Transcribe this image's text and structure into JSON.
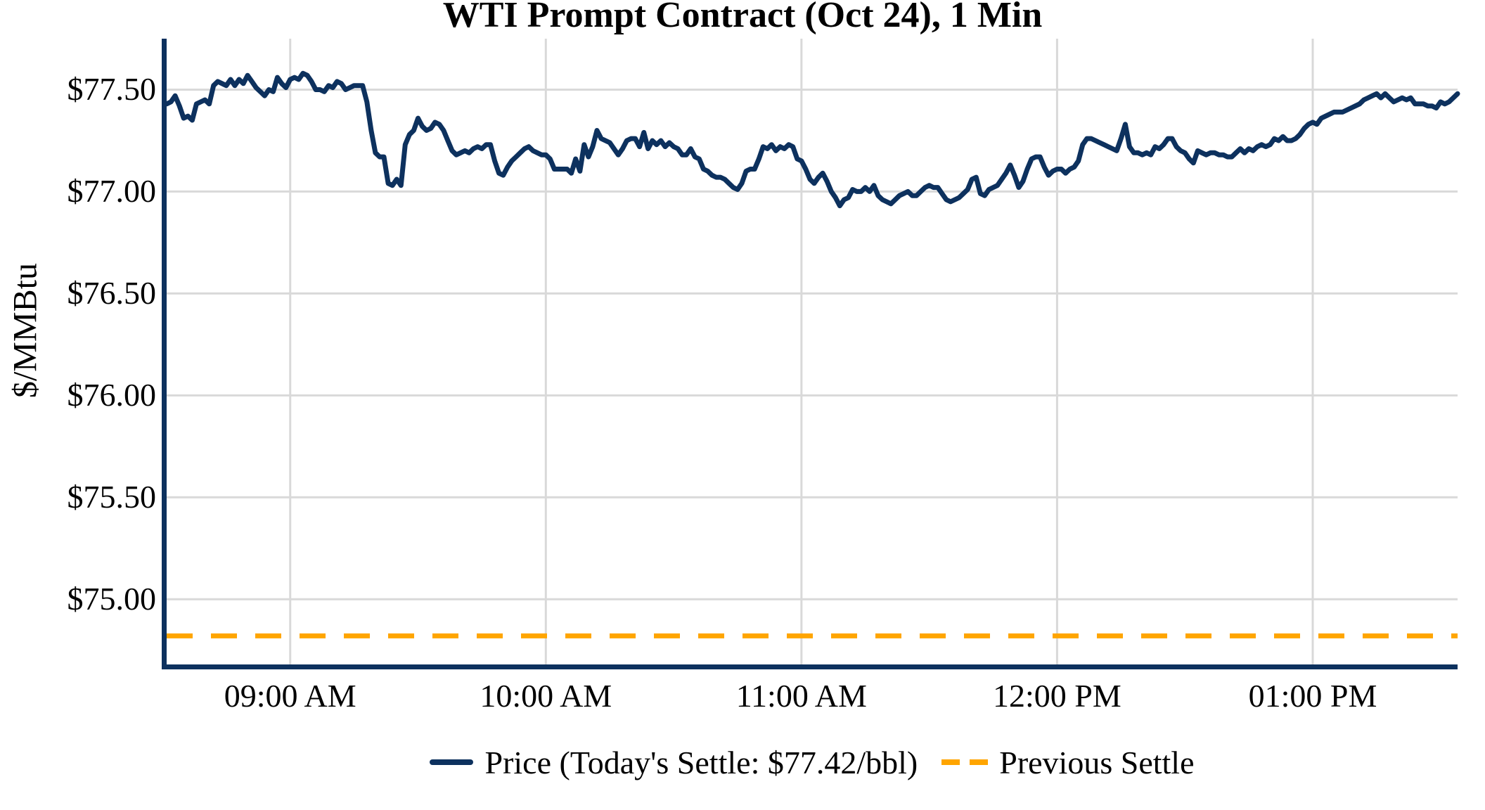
{
  "title": "WTI Prompt Contract (Oct 24), 1 Min",
  "y_axis_label": "$/MMBtu",
  "legend": {
    "price_label": "Price (Today's Settle: $77.42/bbl)",
    "previous_settle_label": "Previous Settle"
  },
  "colors": {
    "price_line": "#0d315e",
    "previous_settle_line": "#ffa500",
    "grid": "#d9d9d9",
    "spine": "#0d315e",
    "text": "#000000",
    "background": "#ffffff"
  },
  "chart_data": {
    "type": "line",
    "title": "WTI Prompt Contract (Oct 24), 1 Min",
    "xlabel": "",
    "ylabel": "$/MMBtu",
    "ylim": [
      74.68,
      77.75
    ],
    "grid": true,
    "legend_position": "bottom",
    "today_settle_usd_per_bbl": 77.42,
    "previous_settle": 74.82,
    "x_start_time": "08:31 AM",
    "x_end_time": "01:34 PM",
    "x_minutes_total": 303,
    "x_ticks": [
      {
        "label": "09:00 AM",
        "minute": 29
      },
      {
        "label": "10:00 AM",
        "minute": 89
      },
      {
        "label": "11:00 AM",
        "minute": 149
      },
      {
        "label": "12:00 PM",
        "minute": 209
      },
      {
        "label": "01:00 PM",
        "minute": 269
      }
    ],
    "y_ticks": [
      {
        "label": "$75.00",
        "value": 75.0
      },
      {
        "label": "$75.50",
        "value": 75.5
      },
      {
        "label": "$76.00",
        "value": 76.0
      },
      {
        "label": "$76.50",
        "value": 76.5
      },
      {
        "label": "$77.00",
        "value": 77.0
      },
      {
        "label": "$77.50",
        "value": 77.5
      }
    ],
    "series": [
      {
        "name": "Price (Today's Settle: $77.42/bbl)",
        "style": "solid",
        "interval": "1 min",
        "values": [
          77.43,
          77.44,
          77.47,
          77.42,
          77.36,
          77.37,
          77.35,
          77.43,
          77.44,
          77.45,
          77.43,
          77.52,
          77.54,
          77.53,
          77.52,
          77.55,
          77.52,
          77.55,
          77.53,
          77.57,
          77.54,
          77.51,
          77.49,
          77.47,
          77.5,
          77.49,
          77.56,
          77.53,
          77.51,
          77.55,
          77.56,
          77.55,
          77.58,
          77.57,
          77.54,
          77.5,
          77.5,
          77.49,
          77.52,
          77.51,
          77.54,
          77.53,
          77.5,
          77.51,
          77.52,
          77.52,
          77.52,
          77.44,
          77.3,
          77.19,
          77.17,
          77.17,
          77.04,
          77.03,
          77.06,
          77.03,
          77.23,
          77.28,
          77.3,
          77.36,
          77.32,
          77.3,
          77.31,
          77.34,
          77.33,
          77.3,
          77.25,
          77.2,
          77.18,
          77.19,
          77.2,
          77.19,
          77.21,
          77.22,
          77.21,
          77.23,
          77.23,
          77.15,
          77.09,
          77.08,
          77.12,
          77.15,
          77.17,
          77.19,
          77.21,
          77.22,
          77.2,
          77.19,
          77.18,
          77.18,
          77.16,
          77.11,
          77.11,
          77.11,
          77.11,
          77.09,
          77.16,
          77.1,
          77.23,
          77.17,
          77.22,
          77.3,
          77.26,
          77.25,
          77.24,
          77.21,
          77.18,
          77.21,
          77.25,
          77.26,
          77.26,
          77.22,
          77.29,
          77.21,
          77.25,
          77.23,
          77.25,
          77.22,
          77.24,
          77.22,
          77.21,
          77.18,
          77.18,
          77.21,
          77.17,
          77.16,
          77.11,
          77.1,
          77.08,
          77.07,
          77.07,
          77.06,
          77.04,
          77.02,
          77.01,
          77.04,
          77.1,
          77.11,
          77.11,
          77.16,
          77.22,
          77.21,
          77.23,
          77.2,
          77.22,
          77.21,
          77.23,
          77.22,
          77.16,
          77.15,
          77.11,
          77.06,
          77.04,
          77.07,
          77.09,
          77.05,
          77.0,
          76.97,
          76.93,
          76.96,
          76.97,
          77.01,
          77.0,
          77.0,
          77.02,
          77.0,
          77.03,
          76.98,
          76.96,
          76.95,
          76.94,
          76.96,
          76.98,
          76.99,
          77.0,
          76.98,
          76.98,
          77.0,
          77.02,
          77.03,
          77.02,
          77.02,
          76.99,
          76.96,
          76.95,
          76.96,
          76.97,
          76.99,
          77.01,
          77.06,
          77.07,
          76.99,
          76.98,
          77.01,
          77.02,
          77.03,
          77.06,
          77.09,
          77.13,
          77.08,
          77.02,
          77.05,
          77.11,
          77.16,
          77.17,
          77.17,
          77.12,
          77.08,
          77.1,
          77.11,
          77.11,
          77.09,
          77.11,
          77.12,
          77.15,
          77.23,
          77.26,
          77.26,
          77.25,
          77.24,
          77.23,
          77.22,
          77.21,
          77.2,
          77.26,
          77.33,
          77.22,
          77.19,
          77.19,
          77.18,
          77.19,
          77.18,
          77.22,
          77.21,
          77.23,
          77.26,
          77.26,
          77.22,
          77.2,
          77.19,
          77.16,
          77.14,
          77.2,
          77.19,
          77.18,
          77.19,
          77.19,
          77.18,
          77.18,
          77.17,
          77.17,
          77.19,
          77.21,
          77.19,
          77.21,
          77.2,
          77.22,
          77.23,
          77.22,
          77.23,
          77.26,
          77.25,
          77.27,
          77.25,
          77.25,
          77.26,
          77.28,
          77.31,
          77.33,
          77.34,
          77.33,
          77.36,
          77.37,
          77.38,
          77.39,
          77.39,
          77.39,
          77.4,
          77.41,
          77.42,
          77.43,
          77.45,
          77.46,
          77.47,
          77.48,
          77.46,
          77.48,
          77.46,
          77.44,
          77.45,
          77.46,
          77.45,
          77.46,
          77.43,
          77.43,
          77.43,
          77.42,
          77.42,
          77.41,
          77.44,
          77.43,
          77.44,
          77.46,
          77.48
        ]
      },
      {
        "name": "Previous Settle",
        "style": "dashed",
        "constant_value": 74.82
      }
    ]
  }
}
